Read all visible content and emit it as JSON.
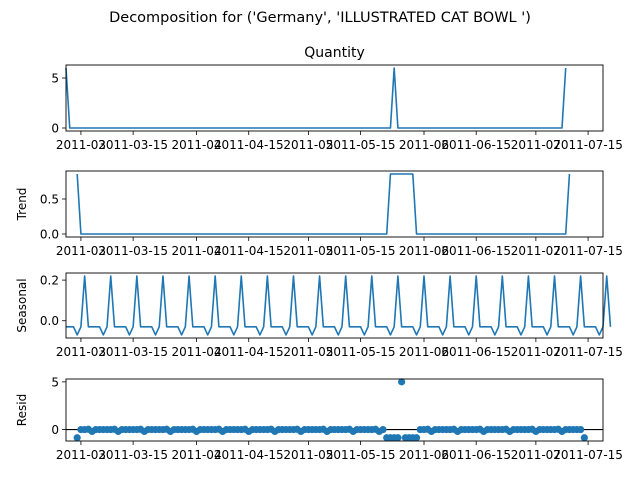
{
  "figure": {
    "suptitle": "Decomposition for ('Germany', 'ILLUSTRATED CAT BOWL ')"
  },
  "chart_data": [
    {
      "type": "line",
      "title": "Quantity",
      "ylabel": "",
      "series": [
        {
          "name": "",
          "x_start": "2011-02-25",
          "x_step_days": 1,
          "values": [
            6,
            0,
            0,
            0,
            0,
            0,
            0,
            0,
            0,
            0,
            0,
            0,
            0,
            0,
            0,
            0,
            0,
            0,
            0,
            0,
            0,
            0,
            0,
            0,
            0,
            0,
            0,
            0,
            0,
            0,
            0,
            0,
            0,
            0,
            0,
            0,
            0,
            0,
            0,
            0,
            0,
            0,
            0,
            0,
            0,
            0,
            0,
            0,
            0,
            0,
            0,
            0,
            0,
            0,
            0,
            0,
            0,
            0,
            0,
            0,
            0,
            0,
            0,
            0,
            0,
            0,
            0,
            0,
            0,
            0,
            0,
            0,
            0,
            0,
            0,
            0,
            0,
            0,
            0,
            0,
            0,
            0,
            0,
            0,
            0,
            0,
            0,
            0,
            6,
            0,
            0,
            0,
            0,
            0,
            0,
            0,
            0,
            0,
            0,
            0,
            0,
            0,
            0,
            0,
            0,
            0,
            0,
            0,
            0,
            0,
            0,
            0,
            0,
            0,
            0,
            0,
            0,
            0,
            0,
            0,
            0,
            0,
            0,
            0,
            0,
            0,
            0,
            0,
            0,
            0,
            0,
            0,
            0,
            0,
            6
          ]
        }
      ],
      "xlim": [
        "2011-02-25",
        "2011-07-19"
      ],
      "ylim": [
        -0.3,
        6.3
      ],
      "yticks": [
        0,
        5
      ],
      "xticks": [
        "2011-03",
        "2011-03-15",
        "2011-04",
        "2011-04-15",
        "2011-05",
        "2011-05-15",
        "2011-06",
        "2011-06-15",
        "2011-07",
        "2011-07-15"
      ],
      "xtick_labels": [
        "2011-03",
        "2011-03-15",
        "2011-04",
        "2011-04-15",
        "2011-05",
        "2011-05-15",
        "2011-06",
        "2011-06-15",
        "2011-07",
        "2011-07-15"
      ],
      "color": "#1f77b4"
    },
    {
      "type": "line",
      "title": "",
      "ylabel": "Trend",
      "series": [
        {
          "name": "",
          "x_start": "2011-02-28",
          "x_step_days": 1,
          "values": [
            0.857,
            0,
            0,
            0,
            0,
            0,
            0,
            0,
            0,
            0,
            0,
            0,
            0,
            0,
            0,
            0,
            0,
            0,
            0,
            0,
            0,
            0,
            0,
            0,
            0,
            0,
            0,
            0,
            0,
            0,
            0,
            0,
            0,
            0,
            0,
            0,
            0,
            0,
            0,
            0,
            0,
            0,
            0,
            0,
            0,
            0,
            0,
            0,
            0,
            0,
            0,
            0,
            0,
            0,
            0,
            0,
            0,
            0,
            0,
            0,
            0,
            0,
            0,
            0,
            0,
            0,
            0,
            0,
            0,
            0,
            0,
            0,
            0,
            0,
            0,
            0,
            0,
            0,
            0,
            0,
            0,
            0,
            0,
            0,
            0.857,
            0.857,
            0.857,
            0.857,
            0.857,
            0.857,
            0.857,
            0,
            0,
            0,
            0,
            0,
            0,
            0,
            0,
            0,
            0,
            0,
            0,
            0,
            0,
            0,
            0,
            0,
            0,
            0,
            0,
            0,
            0,
            0,
            0,
            0,
            0,
            0,
            0,
            0,
            0,
            0,
            0,
            0,
            0,
            0,
            0,
            0,
            0,
            0,
            0,
            0,
            0.857
          ]
        }
      ],
      "xlim": [
        "2011-02-25",
        "2011-07-19"
      ],
      "ylim": [
        -0.043,
        0.9
      ],
      "yticks": [
        0.0,
        0.5
      ],
      "ytick_labels": [
        "0.0",
        "0.5"
      ],
      "xticks": [
        "2011-03",
        "2011-03-15",
        "2011-04",
        "2011-04-15",
        "2011-05",
        "2011-05-15",
        "2011-06",
        "2011-06-15",
        "2011-07",
        "2011-07-15"
      ],
      "xtick_labels": [
        "2011-03",
        "2011-03-15",
        "2011-04",
        "2011-04-15",
        "2011-05",
        "2011-05-15",
        "2011-06",
        "2011-06-15",
        "2011-07",
        "2011-07-15"
      ],
      "color": "#1f77b4"
    },
    {
      "type": "line",
      "title": "",
      "ylabel": "Seasonal",
      "series": [
        {
          "name": "",
          "x_start": "2011-02-25",
          "x_step_days": 1,
          "pattern": [
            -0.03,
            -0.03,
            -0.03,
            -0.07,
            -0.03,
            0.22,
            -0.03
          ],
          "pattern_repeats": 21
        }
      ],
      "xlim": [
        "2011-02-25",
        "2011-07-19"
      ],
      "ylim": [
        -0.085,
        0.235
      ],
      "yticks": [
        0.0,
        0.2
      ],
      "ytick_labels": [
        "0.0",
        "0.2"
      ],
      "xticks": [
        "2011-03",
        "2011-03-15",
        "2011-04",
        "2011-04-15",
        "2011-05",
        "2011-05-15",
        "2011-06",
        "2011-06-15",
        "2011-07",
        "2011-07-15"
      ],
      "xtick_labels": [
        "2011-03",
        "2011-03-15",
        "2011-04",
        "2011-04-15",
        "2011-05",
        "2011-05-15",
        "2011-06",
        "2011-06-15",
        "2011-07",
        "2011-07-15"
      ],
      "color": "#1f77b4"
    },
    {
      "type": "scatter",
      "title": "",
      "ylabel": "Resid",
      "baseline": 0,
      "series": [
        {
          "name": "",
          "x_start": "2011-02-28",
          "x_step_days": 1,
          "values": [
            -0.86,
            0,
            0,
            0.03,
            -0.2,
            0,
            0,
            0,
            0,
            0,
            0.03,
            -0.2,
            0,
            0,
            0,
            0,
            0,
            0.03,
            -0.2,
            0,
            0,
            0,
            0,
            0,
            0.03,
            -0.2,
            0,
            0,
            0,
            0,
            0,
            0.03,
            -0.2,
            0,
            0,
            0,
            0,
            0,
            0.03,
            -0.2,
            0,
            0,
            0,
            0,
            0,
            0.03,
            -0.2,
            0,
            0,
            0,
            0,
            0,
            0.03,
            -0.2,
            0,
            0,
            0,
            0,
            0,
            0.03,
            -0.2,
            0,
            0,
            0,
            0,
            0,
            0.03,
            -0.2,
            0,
            0,
            0,
            0,
            0,
            0.03,
            -0.2,
            0,
            0,
            0,
            0,
            0,
            0.03,
            -0.2,
            0,
            -0.86,
            -0.86,
            -0.86,
            -0.86,
            5.0,
            -0.86,
            -0.86,
            -0.86,
            -0.86,
            0,
            0,
            0.03,
            -0.2,
            0,
            0,
            0,
            0,
            0,
            0.03,
            -0.2,
            0,
            0,
            0,
            0,
            0,
            0.03,
            -0.2,
            0,
            0,
            0,
            0,
            0,
            0.03,
            -0.2,
            0,
            0,
            0,
            0,
            0,
            0.03,
            -0.2,
            0,
            0,
            0,
            0,
            0,
            0.03,
            -0.2,
            0,
            0,
            0,
            0,
            0,
            -0.86
          ]
        }
      ],
      "xlim": [
        "2011-02-25",
        "2011-07-19"
      ],
      "ylim": [
        -1.2,
        5.3
      ],
      "yticks": [
        0,
        5
      ],
      "xticks": [
        "2011-03",
        "2011-03-15",
        "2011-04",
        "2011-04-15",
        "2011-05",
        "2011-05-15",
        "2011-06",
        "2011-06-15",
        "2011-07",
        "2011-07-15"
      ],
      "xtick_labels": [
        "2011-03",
        "2011-03-15",
        "2011-04",
        "2011-04-15",
        "2011-05",
        "2011-05-15",
        "2011-06",
        "2011-06-15",
        "2011-07",
        "2011-07-15"
      ],
      "color": "#1f77b4"
    }
  ]
}
